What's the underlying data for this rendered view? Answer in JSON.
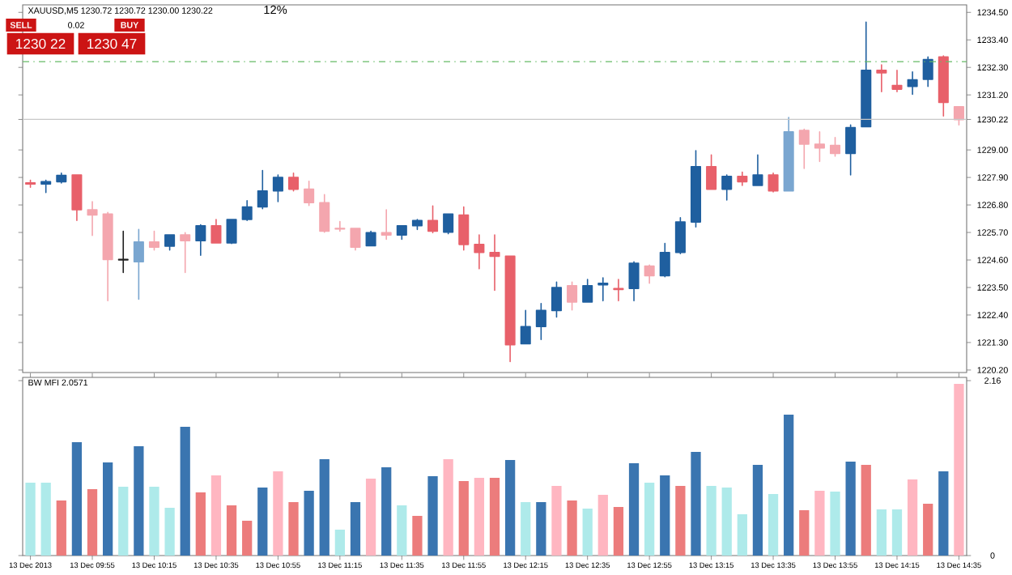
{
  "chart_data": [
    {
      "type": "candlestick",
      "title": "XAUUSD,M5 1230.72 1230.72 1230.00 1230.22",
      "categories": [
        null,
        null,
        null,
        null,
        null,
        null,
        null,
        null,
        null,
        null,
        null,
        null,
        null,
        null,
        null,
        null,
        null,
        null,
        null,
        null,
        null,
        null,
        null,
        null,
        null,
        null,
        null,
        null,
        null,
        null,
        null,
        null,
        null,
        null,
        null,
        null,
        null,
        null,
        null,
        null,
        null,
        null,
        null,
        null,
        null,
        null,
        null,
        null,
        null,
        null,
        null,
        null,
        null,
        null,
        null,
        null,
        null,
        null,
        null,
        null,
        null
      ],
      "ohlc": [
        [
          1227.68,
          1227.79,
          1227.51,
          1227.64
        ],
        [
          1227.64,
          1227.79,
          1227.3,
          1227.73
        ],
        [
          1227.73,
          1228.07,
          1227.68,
          1227.98
        ],
        [
          1228.0,
          1228.0,
          1226.18,
          1226.61
        ],
        [
          1226.61,
          1226.93,
          1225.58,
          1226.4
        ],
        [
          1226.44,
          1226.5,
          1222.97,
          1224.62
        ],
        [
          1224.62,
          1225.75,
          1224.1,
          1224.6
        ],
        [
          1224.53,
          1225.82,
          1223.03,
          1225.32
        ],
        [
          1225.32,
          1225.75,
          1225.0,
          1225.11
        ],
        [
          1225.15,
          1225.6,
          1225.0,
          1225.6
        ],
        [
          1225.6,
          1225.69,
          1224.1,
          1225.37
        ],
        [
          1225.37,
          1226.01,
          1224.79,
          1225.97
        ],
        [
          1225.97,
          1226.22,
          1225.28,
          1225.28
        ],
        [
          1225.28,
          1226.22,
          1225.26,
          1226.22
        ],
        [
          1226.22,
          1226.97,
          1226.18,
          1226.72
        ],
        [
          1226.72,
          1228.18,
          1226.65,
          1227.36
        ],
        [
          1227.36,
          1228.0,
          1226.93,
          1227.9
        ],
        [
          1227.9,
          1228.07,
          1227.36,
          1227.43
        ],
        [
          1227.43,
          1227.75,
          1226.78,
          1226.89
        ],
        [
          1226.89,
          1227.21,
          1225.71,
          1225.75
        ],
        [
          1225.86,
          1226.14,
          1225.75,
          1225.84
        ],
        [
          1225.86,
          1225.86,
          1225.0,
          1225.11
        ],
        [
          1225.17,
          1225.75,
          1225.17,
          1225.69
        ],
        [
          1225.69,
          1226.61,
          1225.43,
          1225.6
        ],
        [
          1225.6,
          1225.97,
          1225.43,
          1225.97
        ],
        [
          1225.97,
          1226.22,
          1225.82,
          1226.18
        ],
        [
          1226.18,
          1226.76,
          1225.69,
          1225.75
        ],
        [
          1225.71,
          1226.44,
          1225.65,
          1226.44
        ],
        [
          1226.4,
          1226.72,
          1225.0,
          1225.22
        ],
        [
          1225.22,
          1225.6,
          1224.25,
          1224.9
        ],
        [
          1224.9,
          1225.6,
          1223.39,
          1224.75
        ],
        [
          1224.75,
          1224.75,
          1220.54,
          1221.21
        ],
        [
          1221.25,
          1222.58,
          1221.25,
          1221.94
        ],
        [
          1221.94,
          1222.86,
          1221.42,
          1222.58
        ],
        [
          1222.58,
          1223.72,
          1222.32,
          1223.5
        ],
        [
          1223.57,
          1223.72,
          1222.6,
          1222.92
        ],
        [
          1222.92,
          1223.82,
          1222.92,
          1223.57
        ],
        [
          1223.61,
          1223.89,
          1222.97,
          1223.67
        ],
        [
          1223.46,
          1223.82,
          1222.97,
          1223.42
        ],
        [
          1223.46,
          1224.53,
          1222.97,
          1224.47
        ],
        [
          1224.36,
          1224.4,
          1223.67,
          1223.97
        ],
        [
          1223.97,
          1225.26,
          1223.93,
          1224.9
        ],
        [
          1224.9,
          1226.29,
          1224.85,
          1226.12
        ],
        [
          1226.12,
          1228.97,
          1225.92,
          1228.33
        ],
        [
          1228.33,
          1228.8,
          1227.43,
          1227.43
        ],
        [
          1227.43,
          1228.0,
          1227.0,
          1227.94
        ],
        [
          1227.94,
          1228.11,
          1227.58,
          1227.73
        ],
        [
          1227.58,
          1228.8,
          1227.58,
          1228.0
        ],
        [
          1228.0,
          1228.07,
          1227.32,
          1227.36
        ],
        [
          1227.36,
          1230.3,
          1227.36,
          1229.72
        ],
        [
          1229.78,
          1229.83,
          1228.26,
          1229.23
        ],
        [
          1229.23,
          1229.72,
          1228.54,
          1229.08
        ],
        [
          1229.18,
          1229.5,
          1228.75,
          1228.86
        ],
        [
          1228.86,
          1230.0,
          1228.0,
          1229.89
        ],
        [
          1229.93,
          1234.11,
          1229.93,
          1232.18
        ],
        [
          1232.18,
          1232.4,
          1231.33,
          1232.08
        ],
        [
          1231.58,
          1232.18,
          1231.33,
          1231.43
        ],
        [
          1231.54,
          1232.12,
          1231.22,
          1231.8
        ],
        [
          1231.82,
          1232.72,
          1231.54,
          1232.61
        ],
        [
          1232.72,
          1232.76,
          1230.36,
          1230.9
        ],
        [
          1230.73,
          1230.73,
          1230.0,
          1230.21
        ]
      ],
      "colors": [
        "#e8606a",
        "#1f5f9f",
        "#1f5f9f",
        "#e8606a",
        "#f4a6ae",
        "#f4a6ae",
        "#202020",
        "#7aa6d0",
        "#f4a6ae",
        "#1f5f9f",
        "#f4a6ae",
        "#1f5f9f",
        "#e8606a",
        "#1f5f9f",
        "#1f5f9f",
        "#1f5f9f",
        "#1f5f9f",
        "#e8606a",
        "#f4a6ae",
        "#f4a6ae",
        "#f4a6ae",
        "#f4a6ae",
        "#1f5f9f",
        "#f4a6ae",
        "#1f5f9f",
        "#1f5f9f",
        "#e8606a",
        "#1f5f9f",
        "#e8606a",
        "#e8606a",
        "#e8606a",
        "#e8606a",
        "#1f5f9f",
        "#1f5f9f",
        "#1f5f9f",
        "#f4a6ae",
        "#1f5f9f",
        "#1f5f9f",
        "#e8606a",
        "#1f5f9f",
        "#f4a6ae",
        "#1f5f9f",
        "#1f5f9f",
        "#1f5f9f",
        "#e8606a",
        "#1f5f9f",
        "#e8606a",
        "#1f5f9f",
        "#e8606a",
        "#7aa6d0",
        "#f4a6ae",
        "#f4a6ae",
        "#f4a6ae",
        "#1f5f9f",
        "#1f5f9f",
        "#e8606a",
        "#e8606a",
        "#1f5f9f",
        "#1f5f9f",
        "#e8606a",
        "#f4a6ae"
      ],
      "ylim": [
        1220.1,
        1234.8
      ],
      "yticks": [
        {
          "value": 1234.5,
          "label": "1234.50"
        },
        {
          "value": 1233.4,
          "label": "1233.40"
        },
        {
          "value": 1232.3,
          "label": "1232.30"
        },
        {
          "value": 1231.2,
          "label": "1231.20"
        },
        {
          "value": 1230.22,
          "label": "1230.22"
        },
        {
          "value": 1229.0,
          "label": "1229.00"
        },
        {
          "value": 1227.9,
          "label": "1227.90"
        },
        {
          "value": 1226.8,
          "label": "1226.80"
        },
        {
          "value": 1225.7,
          "label": "1225.70"
        },
        {
          "value": 1224.6,
          "label": "1224.60"
        },
        {
          "value": 1223.5,
          "label": "1223.50"
        },
        {
          "value": 1222.4,
          "label": "1222.40"
        },
        {
          "value": 1221.3,
          "label": "1221.30"
        },
        {
          "value": 1220.2,
          "label": "1220.20"
        }
      ],
      "tick_labels": "y",
      "ref_lines": [
        {
          "axis": "y",
          "value": 1230.22,
          "color": "#c8c8c8",
          "line_style": "solid"
        },
        {
          "axis": "y",
          "value": 1232.53,
          "color": "#66bb66",
          "line_style": "dashdot"
        }
      ],
      "annotations": [
        "SELL",
        "0.02",
        "BUY",
        "1230 22",
        "1230 47",
        "12%"
      ]
    },
    {
      "type": "bar",
      "title": "BW MFI 2.0571",
      "categories": [
        "13 Dec 2013",
        null,
        null,
        null,
        "13 Dec 09:55",
        null,
        null,
        null,
        "13 Dec 10:15",
        null,
        null,
        null,
        "13 Dec 10:35",
        null,
        null,
        null,
        "13 Dec 10:55",
        null,
        null,
        null,
        "13 Dec 11:15",
        null,
        null,
        null,
        "13 Dec 11:35",
        null,
        null,
        null,
        "13 Dec 11:55",
        null,
        null,
        null,
        "13 Dec 12:15",
        null,
        null,
        null,
        "13 Dec 12:35",
        null,
        null,
        null,
        "13 Dec 12:55",
        null,
        null,
        null,
        "13 Dec 13:15",
        null,
        null,
        null,
        "13 Dec 13:35",
        null,
        null,
        null,
        "13 Dec 13:55",
        null,
        null,
        null,
        "13 Dec 14:15",
        null,
        null,
        null,
        "13 Dec 14:35"
      ],
      "values": [
        0.9,
        0.9,
        0.68,
        1.4,
        0.82,
        1.15,
        0.85,
        1.35,
        0.85,
        0.59,
        1.59,
        0.78,
        0.99,
        0.62,
        0.43,
        0.84,
        1.04,
        0.66,
        0.8,
        1.19,
        0.32,
        0.66,
        0.95,
        1.09,
        0.62,
        0.49,
        0.98,
        1.19,
        0.92,
        0.96,
        0.96,
        1.18,
        0.66,
        0.66,
        0.86,
        0.68,
        0.58,
        0.75,
        0.6,
        1.14,
        0.9,
        0.99,
        0.86,
        1.28,
        0.86,
        0.84,
        0.51,
        1.12,
        0.76,
        1.74,
        0.56,
        0.8,
        0.79,
        1.16,
        1.12,
        0.57,
        0.57,
        0.94,
        0.64,
        1.04,
        2.12
      ],
      "colors": [
        "#aeeaea",
        "#aeeaea",
        "#ec7c7c",
        "#3a75b0",
        "#ec7c7c",
        "#3a75b0",
        "#aeeaea",
        "#3a75b0",
        "#aeeaea",
        "#aeeaea",
        "#3a75b0",
        "#ec7c7c",
        "#ffb6c1",
        "#ec7c7c",
        "#ec7c7c",
        "#3a75b0",
        "#ffb6c1",
        "#ec7c7c",
        "#3a75b0",
        "#3a75b0",
        "#aeeaea",
        "#3a75b0",
        "#ffb6c1",
        "#3a75b0",
        "#aeeaea",
        "#ec7c7c",
        "#3a75b0",
        "#ffb6c1",
        "#ec7c7c",
        "#ffb6c1",
        "#ec7c7c",
        "#3a75b0",
        "#aeeaea",
        "#3a75b0",
        "#ffb6c1",
        "#ec7c7c",
        "#aeeaea",
        "#ffb6c1",
        "#ec7c7c",
        "#3a75b0",
        "#aeeaea",
        "#3a75b0",
        "#ec7c7c",
        "#3a75b0",
        "#aeeaea",
        "#aeeaea",
        "#aeeaea",
        "#3a75b0",
        "#aeeaea",
        "#3a75b0",
        "#ec7c7c",
        "#ffb6c1",
        "#aeeaea",
        "#3a75b0",
        "#ec7c7c",
        "#aeeaea",
        "#aeeaea",
        "#ffb6c1",
        "#ec7c7c",
        "#3a75b0",
        "#ffb6c1"
      ],
      "ylim": [
        0,
        2.2
      ],
      "yticks": [
        {
          "value": 0,
          "label": "0"
        },
        {
          "value": 2.16,
          "label": "2.16"
        }
      ]
    }
  ]
}
